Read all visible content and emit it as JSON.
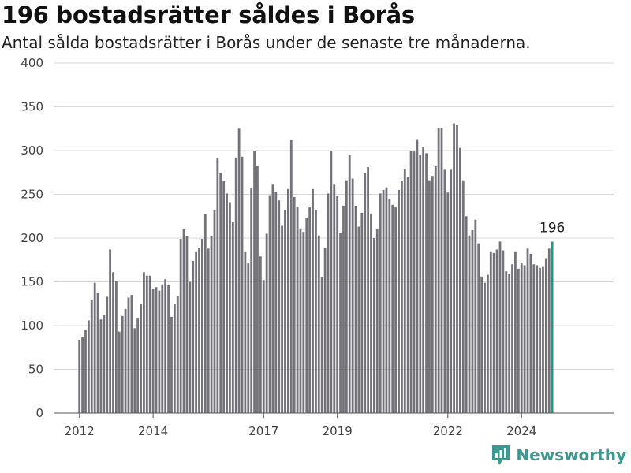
{
  "header": {
    "title": "196 bostadsrätter såldes i Borås",
    "subtitle": "Antal sålda bostadsrätter i Borås under de senaste tre månaderna."
  },
  "brand": {
    "name": "Newsworthy",
    "icon": "bar-chart-logo-icon",
    "color": "#3a9a8f"
  },
  "colors": {
    "bar": "#737278",
    "highlight": "#1f9a8a"
  },
  "chart_data": {
    "type": "bar",
    "title": "196 bostadsrätter såldes i Borås",
    "subtitle": "Antal sålda bostadsrätter i Borås under de senaste tre månaderna.",
    "xlabel": "",
    "ylabel": "",
    "ylim": [
      0,
      400
    ],
    "yticks": [
      0,
      50,
      100,
      150,
      200,
      250,
      300,
      350,
      400
    ],
    "xticks": [
      "2012",
      "2014",
      "2017",
      "2019",
      "2022",
      "2024"
    ],
    "xlim": [
      2011.3,
      2026.5
    ],
    "grid": true,
    "bar_width_years": 0.06,
    "x": [
      2012.0,
      2012.083,
      2012.167,
      2012.25,
      2012.333,
      2012.417,
      2012.5,
      2012.583,
      2012.667,
      2012.75,
      2012.833,
      2012.917,
      2013.0,
      2013.083,
      2013.167,
      2013.25,
      2013.333,
      2013.417,
      2013.5,
      2013.583,
      2013.667,
      2013.75,
      2013.833,
      2013.917,
      2014.0,
      2014.083,
      2014.167,
      2014.25,
      2014.333,
      2014.417,
      2014.5,
      2014.583,
      2014.667,
      2014.75,
      2014.833,
      2014.917,
      2015.0,
      2015.083,
      2015.167,
      2015.25,
      2015.333,
      2015.417,
      2015.5,
      2015.583,
      2015.667,
      2015.75,
      2015.833,
      2015.917,
      2016.0,
      2016.083,
      2016.167,
      2016.25,
      2016.333,
      2016.417,
      2016.5,
      2016.583,
      2016.667,
      2016.75,
      2016.833,
      2016.917,
      2017.0,
      2017.083,
      2017.167,
      2017.25,
      2017.333,
      2017.417,
      2017.5,
      2017.583,
      2017.667,
      2017.75,
      2017.833,
      2017.917,
      2018.0,
      2018.083,
      2018.167,
      2018.25,
      2018.333,
      2018.417,
      2018.5,
      2018.583,
      2018.667,
      2018.75,
      2018.833,
      2018.917,
      2019.0,
      2019.083,
      2019.167,
      2019.25,
      2019.333,
      2019.417,
      2019.5,
      2019.583,
      2019.667,
      2019.75,
      2019.833,
      2019.917,
      2020.0,
      2020.083,
      2020.167,
      2020.25,
      2020.333,
      2020.417,
      2020.5,
      2020.583,
      2020.667,
      2020.75,
      2020.833,
      2020.917,
      2021.0,
      2021.083,
      2021.167,
      2021.25,
      2021.333,
      2021.417,
      2021.5,
      2021.583,
      2021.667,
      2021.75,
      2021.833,
      2021.917,
      2022.0,
      2022.083,
      2022.167,
      2022.25,
      2022.333,
      2022.417,
      2022.5,
      2022.583,
      2022.667,
      2022.75,
      2022.833,
      2022.917,
      2023.0,
      2023.083,
      2023.167,
      2023.25,
      2023.333,
      2023.417,
      2023.5,
      2023.583,
      2023.667,
      2023.75,
      2023.833,
      2023.917,
      2024.0,
      2024.083,
      2024.167,
      2024.25,
      2024.333,
      2024.417,
      2024.5,
      2024.583,
      2024.667,
      2024.75,
      2024.833
    ],
    "values": [
      84,
      87,
      95,
      106,
      129,
      149,
      137,
      107,
      112,
      133,
      187,
      161,
      151,
      93,
      111,
      119,
      132,
      135,
      97,
      108,
      125,
      161,
      157,
      157,
      142,
      144,
      140,
      147,
      153,
      146,
      110,
      125,
      134,
      199,
      210,
      202,
      150,
      174,
      184,
      189,
      199,
      227,
      188,
      202,
      232,
      291,
      274,
      265,
      251,
      241,
      219,
      292,
      325,
      293,
      184,
      171,
      257,
      300,
      283,
      179,
      152,
      205,
      249,
      261,
      253,
      243,
      214,
      232,
      256,
      312,
      247,
      236,
      211,
      207,
      223,
      235,
      256,
      232,
      203,
      155,
      189,
      251,
      300,
      261,
      248,
      206,
      237,
      266,
      295,
      268,
      237,
      213,
      229,
      274,
      281,
      228,
      200,
      210,
      251,
      255,
      258,
      245,
      238,
      235,
      255,
      265,
      279,
      270,
      300,
      299,
      313,
      295,
      304,
      297,
      266,
      271,
      282,
      326,
      326,
      278,
      252,
      278,
      331,
      329,
      303,
      266,
      225,
      203,
      209,
      221,
      194,
      156,
      149,
      158,
      184,
      183,
      187,
      196,
      186,
      162,
      159,
      170,
      184,
      165,
      171,
      169,
      188,
      182,
      170,
      169,
      166,
      167,
      177,
      188,
      196
    ],
    "highlight_index": 154,
    "annotations": [
      {
        "label": "196"
      }
    ]
  }
}
